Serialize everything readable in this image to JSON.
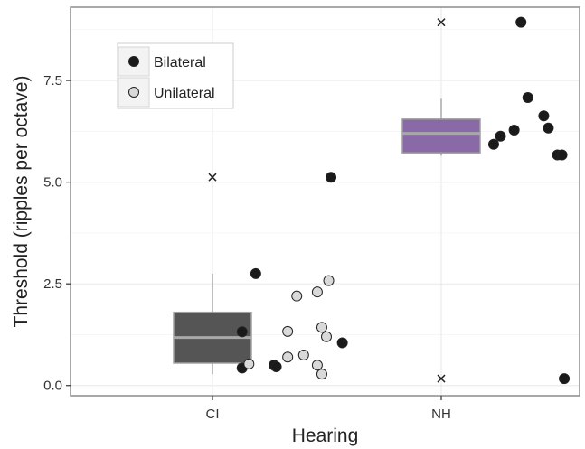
{
  "colors": {
    "panel_border": "#8c8c8c",
    "grid": "#ebebeb",
    "point_bilateral": "#1a1a1a",
    "point_unilateral": "#d9d9d9",
    "box_ci": "#555555",
    "box_nh": "#8a6aa6",
    "median_line": "#a8a8a8"
  },
  "chart_data": {
    "type": "box+jitter",
    "xlabel": "Hearing",
    "ylabel": "Threshold (ripples per octave)",
    "categories": [
      "CI",
      "NH"
    ],
    "ylim": [
      -0.25,
      9.3
    ],
    "yticks": [
      0.0,
      2.5,
      5.0,
      7.5
    ],
    "ytick_labels": [
      "0.0",
      "2.5",
      "5.0",
      "7.5"
    ],
    "grid": true,
    "legend": {
      "position": "top-left",
      "entries": [
        {
          "label": "Bilateral",
          "color": "#1a1a1a"
        },
        {
          "label": "Unilateral",
          "color": "#d9d9d9"
        }
      ]
    },
    "boxes": [
      {
        "category": "CI",
        "q1": 0.55,
        "median": 1.18,
        "q3": 1.8,
        "whisker_low": 0.28,
        "whisker_high": 2.75,
        "outliers": [
          5.12
        ],
        "color": "#555555"
      },
      {
        "category": "NH",
        "q1": 5.72,
        "median": 6.2,
        "q3": 6.55,
        "whisker_low": 5.65,
        "whisker_high": 7.05,
        "outliers": [
          8.93,
          0.17
        ],
        "color": "#8a6aa6"
      }
    ],
    "series": [
      {
        "name": "Bilateral",
        "points": [
          {
            "category": "CI",
            "offset": 0.52,
            "y": 5.12
          },
          {
            "category": "CI",
            "offset": 0.19,
            "y": 2.75
          },
          {
            "category": "CI",
            "offset": 0.13,
            "y": 1.32
          },
          {
            "category": "CI",
            "offset": 0.13,
            "y": 0.43
          },
          {
            "category": "CI",
            "offset": 0.27,
            "y": 0.5
          },
          {
            "category": "CI",
            "offset": 0.28,
            "y": 0.46
          },
          {
            "category": "CI",
            "offset": 0.57,
            "y": 1.05
          },
          {
            "category": "NH",
            "offset": 0.35,
            "y": 8.93
          },
          {
            "category": "NH",
            "offset": 0.38,
            "y": 7.08
          },
          {
            "category": "NH",
            "offset": 0.45,
            "y": 6.63
          },
          {
            "category": "NH",
            "offset": 0.47,
            "y": 6.33
          },
          {
            "category": "NH",
            "offset": 0.32,
            "y": 6.28
          },
          {
            "category": "NH",
            "offset": 0.26,
            "y": 6.13
          },
          {
            "category": "NH",
            "offset": 0.23,
            "y": 5.93
          },
          {
            "category": "NH",
            "offset": 0.51,
            "y": 5.67
          },
          {
            "category": "NH",
            "offset": 0.53,
            "y": 5.67
          },
          {
            "category": "NH",
            "offset": 0.54,
            "y": 0.17
          }
        ]
      },
      {
        "name": "Unilateral",
        "points": [
          {
            "category": "CI",
            "offset": 0.51,
            "y": 2.58
          },
          {
            "category": "CI",
            "offset": 0.46,
            "y": 2.3
          },
          {
            "category": "CI",
            "offset": 0.37,
            "y": 2.2
          },
          {
            "category": "CI",
            "offset": 0.33,
            "y": 1.33
          },
          {
            "category": "CI",
            "offset": 0.48,
            "y": 1.43
          },
          {
            "category": "CI",
            "offset": 0.5,
            "y": 1.2
          },
          {
            "category": "CI",
            "offset": 0.4,
            "y": 0.75
          },
          {
            "category": "CI",
            "offset": 0.33,
            "y": 0.7
          },
          {
            "category": "CI",
            "offset": 0.16,
            "y": 0.53
          },
          {
            "category": "CI",
            "offset": 0.46,
            "y": 0.5
          },
          {
            "category": "CI",
            "offset": 0.48,
            "y": 0.28
          }
        ]
      }
    ]
  }
}
